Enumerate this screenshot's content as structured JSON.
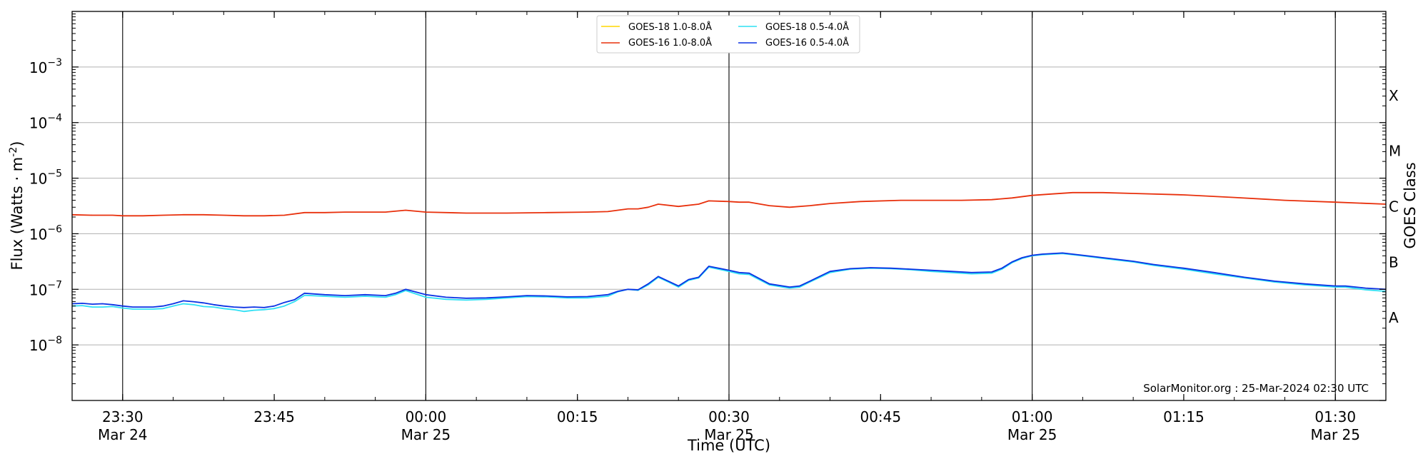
{
  "chart_data": {
    "type": "line",
    "title": "",
    "xlabel": "Time (UTC)",
    "ylabel": "Flux (Watts · m",
    "ylabel_sup": "-2",
    "ylabel_close": ")",
    "y2label": "GOES Class",
    "yscale": "log",
    "ylim": [
      1e-09,
      0.01
    ],
    "xlim": [
      "2024-03-24 23:25",
      "2024-03-25 01:35"
    ],
    "grid": "horizontal",
    "legend_position": "top-center",
    "credit": "SolarMonitor.org : 25-Mar-2024 02:30 UTC",
    "y_ticks": [
      {
        "value": 1e-08,
        "base": "10",
        "exp": "−8"
      },
      {
        "value": 1e-07,
        "base": "10",
        "exp": "−7"
      },
      {
        "value": 1e-06,
        "base": "10",
        "exp": "−6"
      },
      {
        "value": 1e-05,
        "base": "10",
        "exp": "−5"
      },
      {
        "value": 0.0001,
        "base": "10",
        "exp": "−4"
      },
      {
        "value": 0.001,
        "base": "10",
        "exp": "−3"
      }
    ],
    "x_ticks": [
      {
        "time": "2024-03-24 23:30",
        "label": "23:30",
        "sub": "Mar 24",
        "vline": true
      },
      {
        "time": "2024-03-24 23:45",
        "label": "23:45",
        "sub": "",
        "vline": false
      },
      {
        "time": "2024-03-25 00:00",
        "label": "00:00",
        "sub": "Mar 25",
        "vline": true
      },
      {
        "time": "2024-03-25 00:15",
        "label": "00:15",
        "sub": "",
        "vline": false
      },
      {
        "time": "2024-03-25 00:30",
        "label": "00:30",
        "sub": "Mar 25",
        "vline": true
      },
      {
        "time": "2024-03-25 00:45",
        "label": "00:45",
        "sub": "",
        "vline": false
      },
      {
        "time": "2024-03-25 01:00",
        "label": "01:00",
        "sub": "Mar 25",
        "vline": true
      },
      {
        "time": "2024-03-25 01:15",
        "label": "01:15",
        "sub": "",
        "vline": false
      },
      {
        "time": "2024-03-25 01:30",
        "label": "01:30",
        "sub": "Mar 25",
        "vline": true
      }
    ],
    "goes_classes": [
      {
        "label": "A",
        "value": 3.16e-08
      },
      {
        "label": "B",
        "value": 3.16e-07
      },
      {
        "label": "C",
        "value": 3.16e-06
      },
      {
        "label": "M",
        "value": 3.16e-05
      },
      {
        "label": "X",
        "value": 0.000316
      }
    ],
    "series": [
      {
        "name": "GOES-18 1.0-8.0Å",
        "color": "#ffd700",
        "x": [],
        "y": []
      },
      {
        "name": "GOES-16 1.0-8.0Å",
        "color": "#e8300c",
        "x": [
          "2024-03-24 23:25",
          "2024-03-24 23:27",
          "2024-03-24 23:29",
          "2024-03-24 23:30",
          "2024-03-24 23:32",
          "2024-03-24 23:34",
          "2024-03-24 23:36",
          "2024-03-24 23:38",
          "2024-03-24 23:40",
          "2024-03-24 23:42",
          "2024-03-24 23:44",
          "2024-03-24 23:46",
          "2024-03-24 23:48",
          "2024-03-24 23:50",
          "2024-03-24 23:52",
          "2024-03-24 23:54",
          "2024-03-24 23:56",
          "2024-03-24 23:58",
          "2024-03-25 00:00",
          "2024-03-25 00:04",
          "2024-03-25 00:08",
          "2024-03-25 00:12",
          "2024-03-25 00:16",
          "2024-03-25 00:18",
          "2024-03-25 00:20",
          "2024-03-25 00:21",
          "2024-03-25 00:22",
          "2024-03-25 00:23",
          "2024-03-25 00:25",
          "2024-03-25 00:27",
          "2024-03-25 00:28",
          "2024-03-25 00:30",
          "2024-03-25 00:31",
          "2024-03-25 00:32",
          "2024-03-25 00:34",
          "2024-03-25 00:36",
          "2024-03-25 00:38",
          "2024-03-25 00:40",
          "2024-03-25 00:43",
          "2024-03-25 00:47",
          "2024-03-25 00:50",
          "2024-03-25 00:53",
          "2024-03-25 00:56",
          "2024-03-25 00:58",
          "2024-03-25 01:00",
          "2024-03-25 01:02",
          "2024-03-25 01:04",
          "2024-03-25 01:07",
          "2024-03-25 01:10",
          "2024-03-25 01:15",
          "2024-03-25 01:20",
          "2024-03-25 01:25",
          "2024-03-25 01:30",
          "2024-03-25 01:35"
        ],
        "y": [
          2.2e-06,
          2.15e-06,
          2.15e-06,
          2.1e-06,
          2.1e-06,
          2.15e-06,
          2.2e-06,
          2.2e-06,
          2.15e-06,
          2.1e-06,
          2.1e-06,
          2.15e-06,
          2.4e-06,
          2.4e-06,
          2.45e-06,
          2.45e-06,
          2.45e-06,
          2.65e-06,
          2.45e-06,
          2.35e-06,
          2.35e-06,
          2.4e-06,
          2.45e-06,
          2.5e-06,
          2.8e-06,
          2.8e-06,
          3e-06,
          3.4e-06,
          3.1e-06,
          3.4e-06,
          3.9e-06,
          3.8e-06,
          3.7e-06,
          3.7e-06,
          3.2e-06,
          3e-06,
          3.2e-06,
          3.5e-06,
          3.8e-06,
          4e-06,
          4e-06,
          4e-06,
          4.1e-06,
          4.4e-06,
          4.9e-06,
          5.2e-06,
          5.5e-06,
          5.5e-06,
          5.3e-06,
          5e-06,
          4.5e-06,
          4e-06,
          3.7e-06,
          3.4e-06
        ]
      },
      {
        "name": "GOES-18 0.5-4.0Å",
        "color": "#2fe0f4",
        "x": [
          "2024-03-24 23:25",
          "2024-03-24 23:26",
          "2024-03-24 23:27",
          "2024-03-24 23:28",
          "2024-03-24 23:29",
          "2024-03-24 23:30",
          "2024-03-24 23:31",
          "2024-03-24 23:32",
          "2024-03-24 23:33",
          "2024-03-24 23:34",
          "2024-03-24 23:35",
          "2024-03-24 23:36",
          "2024-03-24 23:37",
          "2024-03-24 23:38",
          "2024-03-24 23:39",
          "2024-03-24 23:40",
          "2024-03-24 23:41",
          "2024-03-24 23:42",
          "2024-03-24 23:43",
          "2024-03-24 23:44",
          "2024-03-24 23:45",
          "2024-03-24 23:46",
          "2024-03-24 23:47",
          "2024-03-24 23:48",
          "2024-03-24 23:50",
          "2024-03-24 23:52",
          "2024-03-24 23:54",
          "2024-03-24 23:56",
          "2024-03-24 23:57",
          "2024-03-24 23:58",
          "2024-03-25 00:00",
          "2024-03-25 00:02",
          "2024-03-25 00:04",
          "2024-03-25 00:06",
          "2024-03-25 00:08",
          "2024-03-25 00:10",
          "2024-03-25 00:12",
          "2024-03-25 00:14",
          "2024-03-25 00:16",
          "2024-03-25 00:18",
          "2024-03-25 00:19",
          "2024-03-25 00:20",
          "2024-03-25 00:21",
          "2024-03-25 00:22",
          "2024-03-25 00:23",
          "2024-03-25 00:24",
          "2024-03-25 00:25",
          "2024-03-25 00:26",
          "2024-03-25 00:27",
          "2024-03-25 00:28",
          "2024-03-25 00:30",
          "2024-03-25 00:31",
          "2024-03-25 00:32",
          "2024-03-25 00:34",
          "2024-03-25 00:36",
          "2024-03-25 00:37",
          "2024-03-25 00:38",
          "2024-03-25 00:40",
          "2024-03-25 00:42",
          "2024-03-25 00:44",
          "2024-03-25 00:46",
          "2024-03-25 00:48",
          "2024-03-25 00:50",
          "2024-03-25 00:52",
          "2024-03-25 00:54",
          "2024-03-25 00:56",
          "2024-03-25 00:57",
          "2024-03-25 00:58",
          "2024-03-25 00:59",
          "2024-03-25 01:00",
          "2024-03-25 01:01",
          "2024-03-25 01:03",
          "2024-03-25 01:05",
          "2024-03-25 01:07",
          "2024-03-25 01:10",
          "2024-03-25 01:12",
          "2024-03-25 01:15",
          "2024-03-25 01:18",
          "2024-03-25 01:21",
          "2024-03-25 01:24",
          "2024-03-25 01:27",
          "2024-03-25 01:30",
          "2024-03-25 01:31",
          "2024-03-25 01:33",
          "2024-03-25 01:35"
        ],
        "y": [
          5e-08,
          5.1e-08,
          4.8e-08,
          4.8e-08,
          4.9e-08,
          4.6e-08,
          4.4e-08,
          4.4e-08,
          4.4e-08,
          4.5e-08,
          5e-08,
          5.5e-08,
          5.3e-08,
          4.9e-08,
          4.8e-08,
          4.5e-08,
          4.3e-08,
          4e-08,
          4.2e-08,
          4.3e-08,
          4.5e-08,
          5e-08,
          6e-08,
          7.8e-08,
          7.5e-08,
          7.2e-08,
          7.5e-08,
          7.2e-08,
          8e-08,
          9.5e-08,
          7.2e-08,
          6.6e-08,
          6.4e-08,
          6.6e-08,
          7e-08,
          7.4e-08,
          7.3e-08,
          7e-08,
          7e-08,
          7.5e-08,
          9e-08,
          1e-07,
          9.6e-08,
          1.2e-07,
          1.65e-07,
          1.35e-07,
          1.1e-07,
          1.45e-07,
          1.6e-07,
          2.5e-07,
          2.1e-07,
          1.9e-07,
          1.85e-07,
          1.2e-07,
          1.05e-07,
          1.1e-07,
          1.35e-07,
          2e-07,
          2.3e-07,
          2.4e-07,
          2.35e-07,
          2.25e-07,
          2.1e-07,
          2e-07,
          1.9e-07,
          1.95e-07,
          2.3e-07,
          3e-07,
          3.6e-07,
          4e-07,
          4.2e-07,
          4.4e-07,
          4e-07,
          3.6e-07,
          3.1e-07,
          2.7e-07,
          2.3e-07,
          1.9e-07,
          1.6e-07,
          1.35e-07,
          1.2e-07,
          1.1e-07,
          1.1e-07,
          9.8e-08,
          9.2e-08
        ]
      },
      {
        "name": "GOES-16 0.5-4.0Å",
        "color": "#0b32e4",
        "x": [
          "2024-03-24 23:25",
          "2024-03-24 23:26",
          "2024-03-24 23:27",
          "2024-03-24 23:28",
          "2024-03-24 23:29",
          "2024-03-24 23:30",
          "2024-03-24 23:31",
          "2024-03-24 23:32",
          "2024-03-24 23:33",
          "2024-03-24 23:34",
          "2024-03-24 23:35",
          "2024-03-24 23:36",
          "2024-03-24 23:37",
          "2024-03-24 23:38",
          "2024-03-24 23:39",
          "2024-03-24 23:40",
          "2024-03-24 23:41",
          "2024-03-24 23:42",
          "2024-03-24 23:43",
          "2024-03-24 23:44",
          "2024-03-24 23:45",
          "2024-03-24 23:46",
          "2024-03-24 23:47",
          "2024-03-24 23:48",
          "2024-03-24 23:50",
          "2024-03-24 23:52",
          "2024-03-24 23:54",
          "2024-03-24 23:56",
          "2024-03-24 23:57",
          "2024-03-24 23:58",
          "2024-03-25 00:00",
          "2024-03-25 00:02",
          "2024-03-25 00:04",
          "2024-03-25 00:06",
          "2024-03-25 00:08",
          "2024-03-25 00:10",
          "2024-03-25 00:12",
          "2024-03-25 00:14",
          "2024-03-25 00:16",
          "2024-03-25 00:18",
          "2024-03-25 00:19",
          "2024-03-25 00:20",
          "2024-03-25 00:21",
          "2024-03-25 00:22",
          "2024-03-25 00:23",
          "2024-03-25 00:24",
          "2024-03-25 00:25",
          "2024-03-25 00:26",
          "2024-03-25 00:27",
          "2024-03-25 00:28",
          "2024-03-25 00:30",
          "2024-03-25 00:31",
          "2024-03-25 00:32",
          "2024-03-25 00:34",
          "2024-03-25 00:36",
          "2024-03-25 00:37",
          "2024-03-25 00:38",
          "2024-03-25 00:40",
          "2024-03-25 00:42",
          "2024-03-25 00:44",
          "2024-03-25 00:46",
          "2024-03-25 00:48",
          "2024-03-25 00:50",
          "2024-03-25 00:52",
          "2024-03-25 00:54",
          "2024-03-25 00:56",
          "2024-03-25 00:57",
          "2024-03-25 00:58",
          "2024-03-25 00:59",
          "2024-03-25 01:00",
          "2024-03-25 01:01",
          "2024-03-25 01:03",
          "2024-03-25 01:05",
          "2024-03-25 01:07",
          "2024-03-25 01:10",
          "2024-03-25 01:12",
          "2024-03-25 01:15",
          "2024-03-25 01:18",
          "2024-03-25 01:21",
          "2024-03-25 01:24",
          "2024-03-25 01:27",
          "2024-03-25 01:30",
          "2024-03-25 01:31",
          "2024-03-25 01:33",
          "2024-03-25 01:35"
        ],
        "y": [
          5.5e-08,
          5.6e-08,
          5.4e-08,
          5.5e-08,
          5.3e-08,
          5e-08,
          4.8e-08,
          4.8e-08,
          4.8e-08,
          5e-08,
          5.5e-08,
          6.2e-08,
          6e-08,
          5.7e-08,
          5.3e-08,
          5e-08,
          4.8e-08,
          4.7e-08,
          4.8e-08,
          4.7e-08,
          5e-08,
          5.8e-08,
          6.5e-08,
          8.5e-08,
          8e-08,
          7.7e-08,
          8e-08,
          7.7e-08,
          8.5e-08,
          1e-07,
          8e-08,
          7.2e-08,
          6.9e-08,
          7e-08,
          7.3e-08,
          7.7e-08,
          7.6e-08,
          7.3e-08,
          7.4e-08,
          8e-08,
          9.2e-08,
          1e-07,
          9.8e-08,
          1.25e-07,
          1.7e-07,
          1.4e-07,
          1.15e-07,
          1.5e-07,
          1.65e-07,
          2.6e-07,
          2.2e-07,
          2e-07,
          1.95e-07,
          1.25e-07,
          1.1e-07,
          1.15e-07,
          1.4e-07,
          2.1e-07,
          2.35e-07,
          2.45e-07,
          2.4e-07,
          2.3e-07,
          2.2e-07,
          2.1e-07,
          2e-07,
          2.05e-07,
          2.4e-07,
          3.1e-07,
          3.7e-07,
          4.1e-07,
          4.3e-07,
          4.5e-07,
          4.1e-07,
          3.7e-07,
          3.2e-07,
          2.8e-07,
          2.4e-07,
          2e-07,
          1.65e-07,
          1.4e-07,
          1.25e-07,
          1.15e-07,
          1.15e-07,
          1.05e-07,
          1e-07
        ]
      }
    ]
  }
}
